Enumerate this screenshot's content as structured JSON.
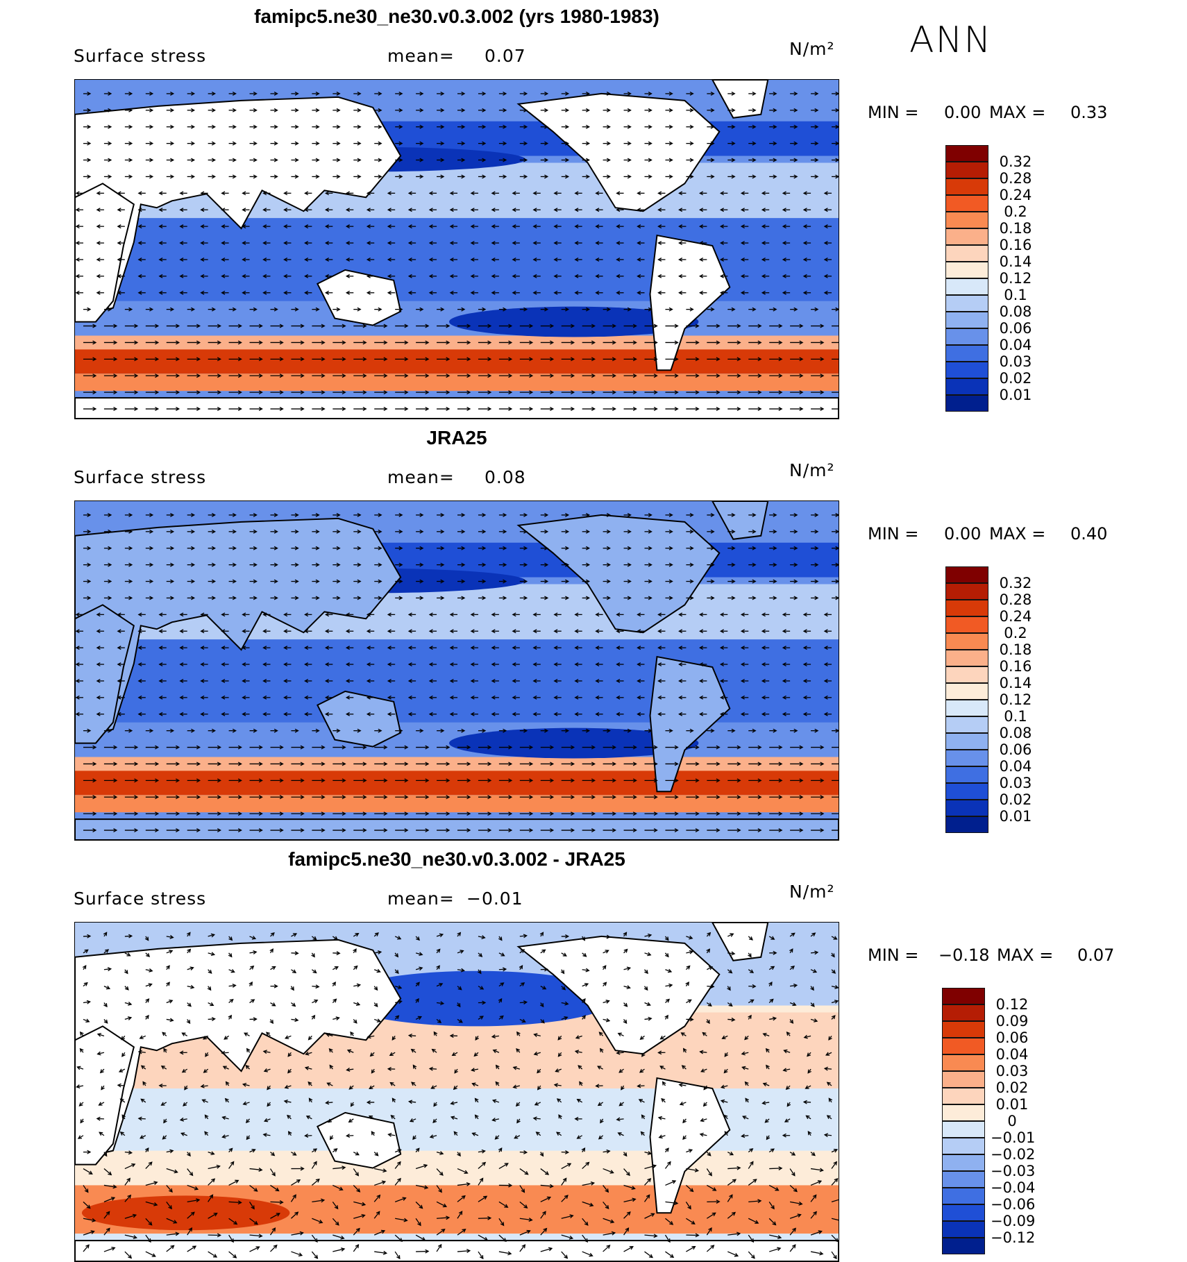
{
  "season": "ANN",
  "panels": [
    {
      "title": "famipc5.ne30_ne30.v0.3.002 (yrs 1980-1983)",
      "field_label": "Surface stress",
      "mean_label": "mean=",
      "mean_value": "0.07",
      "units": "N/m²",
      "min_label": "MIN =",
      "min_value": "0.00",
      "max_label": "MAX =",
      "max_value": "0.33",
      "kind": "model",
      "colorbar": {
        "levels": [
          "0.32",
          "0.28",
          "0.24",
          "0.2",
          "0.18",
          "0.16",
          "0.14",
          "0.12",
          "0.1",
          "0.08",
          "0.06",
          "0.04",
          "0.03",
          "0.02",
          "0.01"
        ],
        "colors": [
          "#7f0000",
          "#b51d04",
          "#d83a08",
          "#f15a24",
          "#f98a52",
          "#fbb08a",
          "#fdd5bd",
          "#fdecd9",
          "#d8e8f9",
          "#b5cdf5",
          "#8fb1f0",
          "#6891ea",
          "#3f6fe2",
          "#1f4fd6",
          "#0a33b8",
          "#001f8e"
        ]
      }
    },
    {
      "title": "JRA25",
      "field_label": "Surface stress",
      "mean_label": "mean=",
      "mean_value": "0.08",
      "units": "N/m²",
      "min_label": "MIN =",
      "min_value": "0.00",
      "max_label": "MAX =",
      "max_value": "0.40",
      "kind": "obs",
      "colorbar": {
        "levels": [
          "0.32",
          "0.28",
          "0.24",
          "0.2",
          "0.18",
          "0.16",
          "0.14",
          "0.12",
          "0.1",
          "0.08",
          "0.06",
          "0.04",
          "0.03",
          "0.02",
          "0.01"
        ],
        "colors": [
          "#7f0000",
          "#b51d04",
          "#d83a08",
          "#f15a24",
          "#f98a52",
          "#fbb08a",
          "#fdd5bd",
          "#fdecd9",
          "#d8e8f9",
          "#b5cdf5",
          "#8fb1f0",
          "#6891ea",
          "#3f6fe2",
          "#1f4fd6",
          "#0a33b8",
          "#001f8e"
        ]
      }
    },
    {
      "title": "famipc5.ne30_ne30.v0.3.002 - JRA25",
      "field_label": "Surface stress",
      "mean_label": "mean=",
      "mean_value": "−0.01",
      "units": "N/m²",
      "min_label": "MIN =",
      "min_value": "−0.18",
      "max_label": "MAX =",
      "max_value": "0.07",
      "kind": "diff",
      "colorbar": {
        "levels": [
          "0.12",
          "0.09",
          "0.06",
          "0.04",
          "0.03",
          "0.02",
          "0.01",
          "0",
          "−0.01",
          "−0.02",
          "−0.03",
          "−0.04",
          "−0.06",
          "−0.09",
          "−0.12"
        ],
        "colors": [
          "#7f0000",
          "#b51d04",
          "#d83a08",
          "#f15a24",
          "#f98a52",
          "#fbb08a",
          "#fdd5bd",
          "#fdecd9",
          "#d8e8f9",
          "#b5cdf5",
          "#8fb1f0",
          "#6891ea",
          "#3f6fe2",
          "#1f4fd6",
          "#0a33b8",
          "#001f8e"
        ]
      }
    }
  ]
}
